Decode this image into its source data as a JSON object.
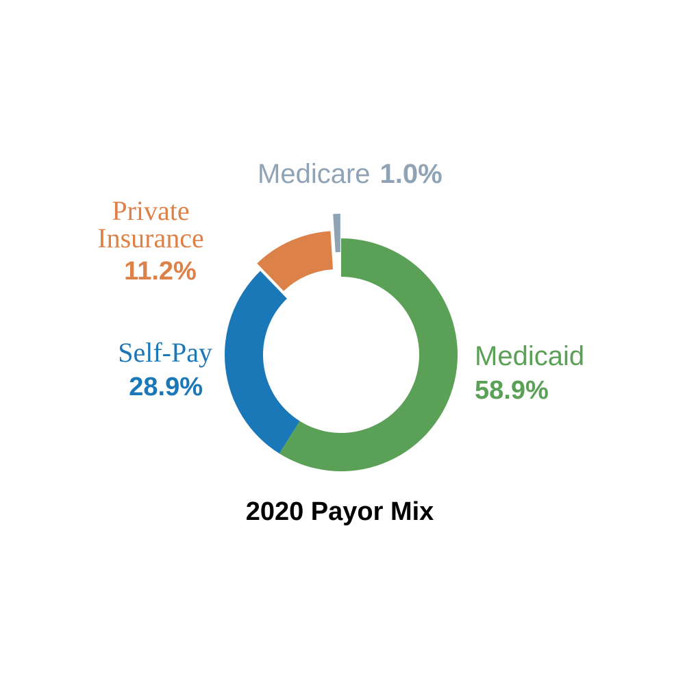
{
  "chart_data": {
    "type": "donut",
    "title": "2020 Payor Mix",
    "categories": [
      "Medicaid",
      "Self-Pay",
      "Private Insurance",
      "Medicare"
    ],
    "values": [
      58.9,
      28.9,
      11.2,
      1.0
    ],
    "value_labels": [
      "58.9%",
      "28.9%",
      "11.2%",
      "1.0%"
    ],
    "colors": [
      "#5ba057",
      "#1a78b8",
      "#dc8249",
      "#8fa3b5"
    ]
  }
}
